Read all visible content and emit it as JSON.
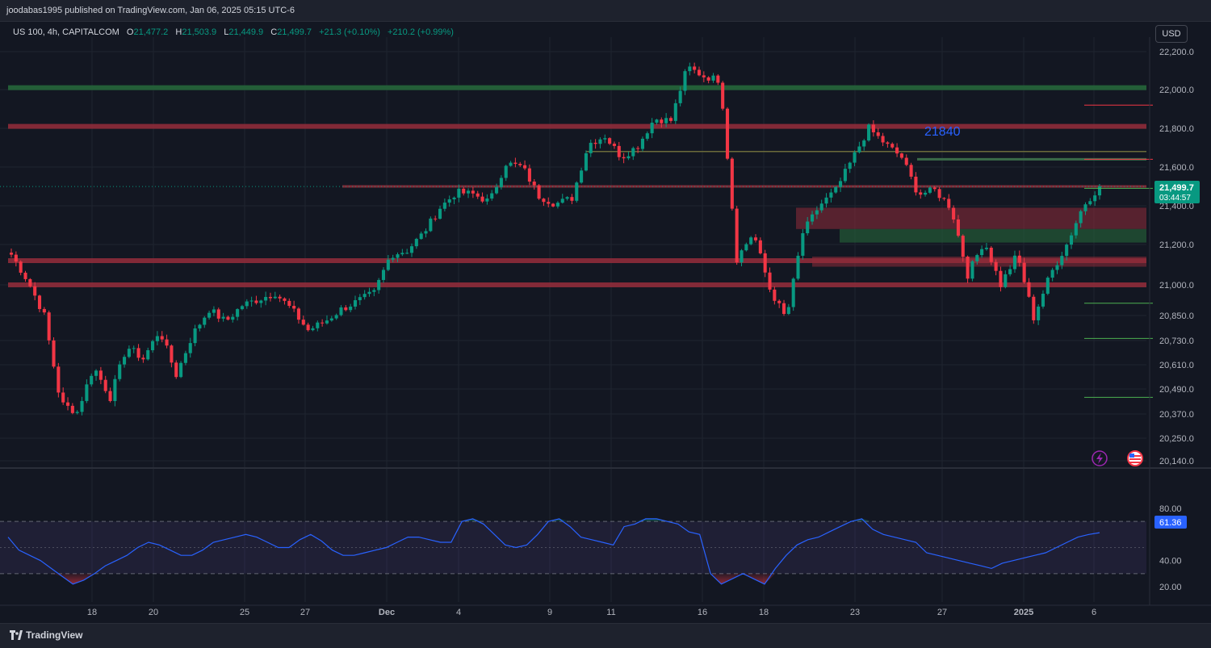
{
  "header": {
    "published": "joodabas1995 published on TradingView.com, Jan 06, 2025 05:15 UTC-6"
  },
  "legend": {
    "symbol": "US 100, 4h, CAPITALCOM",
    "o_label": "O",
    "o_value": "21,477.2",
    "h_label": "H",
    "h_value": "21,503.9",
    "l_label": "L",
    "l_value": "21,449.9",
    "c_label": "C",
    "c_value": "21,499.7",
    "change": "+21.3 (+0.10%)",
    "change_session": "+210.2 (+0.99%)"
  },
  "currency": "USD",
  "price_badge": {
    "value": "21,499.7",
    "countdown": "03:44:57"
  },
  "rsi_badge": "61.36",
  "annotation": "21840",
  "footer": {
    "brand": "TradingView"
  },
  "colors": {
    "up": "#089981",
    "down": "#f23645",
    "background": "#131722",
    "rsi_line": "#2962ff",
    "rsi_band": "#7e57c2"
  },
  "chart_data": [
    {
      "type": "candlestick",
      "yaxis_ticks": [
        "22,200.0",
        "22,000.0",
        "21,800.0",
        "21,600.0",
        "21,400.0",
        "21,200.0",
        "21,000.0",
        "20,850.0",
        "20,730.0",
        "20,610.0",
        "20,490.0",
        "20,370.0",
        "20,250.0",
        "20,140.0"
      ],
      "xaxis_ticks": [
        "18",
        "20",
        "25",
        "27",
        "Dec",
        "4",
        "9",
        "11",
        "16",
        "18",
        "23",
        "27",
        "2025",
        "6"
      ],
      "ohlc_anchor_closes": [
        21150,
        21020,
        20850,
        20420,
        20380,
        20600,
        20450,
        20700,
        20640,
        20780,
        20560,
        20760,
        20880,
        20820,
        20900,
        20930,
        20960,
        20880,
        20780,
        20820,
        20880,
        20920,
        20960,
        21150,
        21170,
        21260,
        21390,
        21470,
        21460,
        21420,
        21620,
        21600,
        21450,
        21410,
        21440,
        21720,
        21760,
        21650,
        21710,
        21850,
        21840,
        22120,
        22070,
        22050,
        21130,
        21260,
        20980,
        20830,
        21260,
        21400,
        21480,
        21640,
        21800,
        21720,
        21650,
        21460,
        21480,
        21390,
        21050,
        21220,
        21000,
        21150,
        20840,
        21050,
        21200,
        21400,
        21499.7
      ],
      "zones": [
        {
          "type": "support",
          "value": 22010
        },
        {
          "type": "resistance",
          "value": 21810
        },
        {
          "type": "resistance",
          "value": 21500
        },
        {
          "type": "resistance",
          "value": 21120
        },
        {
          "type": "resistance",
          "value": 21000
        }
      ],
      "right_levels": [
        21920,
        21640,
        21490,
        20910,
        20740,
        20450
      ],
      "annotation_value": 21840,
      "last_close": 21499.7
    },
    {
      "type": "line",
      "name": "RSI",
      "yaxis_ticks": [
        "80.00",
        "40.00",
        "20.00"
      ],
      "band": [
        30,
        70
      ],
      "midline": 50,
      "last_value": 61.36,
      "values": [
        58,
        48,
        44,
        40,
        34,
        28,
        22,
        25,
        30,
        36,
        40,
        44,
        50,
        54,
        52,
        48,
        44,
        44,
        48,
        54,
        56,
        58,
        60,
        58,
        54,
        50,
        50,
        56,
        60,
        55,
        48,
        44,
        44,
        46,
        48,
        50,
        54,
        58,
        58,
        56,
        54,
        54,
        70,
        72,
        68,
        60,
        52,
        50,
        52,
        60,
        70,
        72,
        66,
        58,
        56,
        54,
        52,
        66,
        68,
        72,
        72,
        70,
        68,
        62,
        60,
        30,
        22,
        26,
        30,
        26,
        22,
        34,
        44,
        52,
        56,
        58,
        62,
        66,
        70,
        72,
        64,
        60,
        58,
        56,
        54,
        46,
        44,
        42,
        40,
        38,
        36,
        34,
        38,
        40,
        42,
        44,
        46,
        50,
        54,
        58,
        60,
        61.36
      ]
    }
  ]
}
